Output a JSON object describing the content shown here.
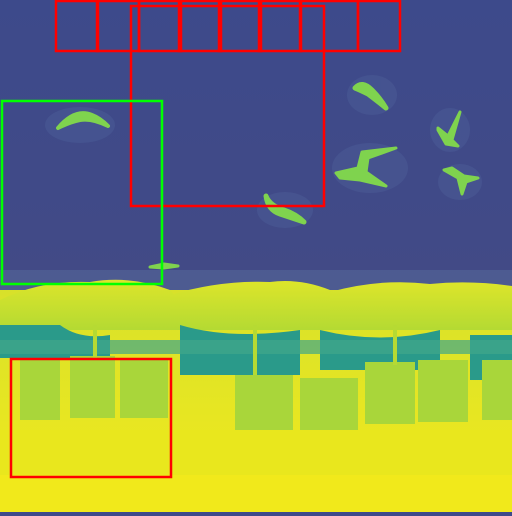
{
  "image": {
    "kind": "depth-map visualization with detection boxes",
    "colormap": "viridis",
    "palette": {
      "sky": "#3f4a8a",
      "sky_light": "#4f5e98",
      "bird": "#7fd34e",
      "umbrella": "#c9df2c",
      "umbrella_light": "#d8e32a",
      "teal": "#2a9a8a",
      "chair": "#a9d63a",
      "sand": "#e5e61f",
      "sand_light": "#f3ea1b"
    }
  },
  "boxes": [
    {
      "label": "",
      "color": "#ff0000"
    },
    {
      "label": "",
      "color": "#ff0000"
    },
    {
      "label": "",
      "color": "#ff0000"
    },
    {
      "label": "",
      "color": "#ff0000"
    },
    {
      "label": "",
      "color": "#ff0000"
    },
    {
      "label": "",
      "color": "#ff0000"
    },
    {
      "label": "",
      "color": "#ff0000"
    },
    {
      "label": "",
      "color": "#ff0000"
    },
    {
      "label": "",
      "color": "#ff0000"
    },
    {
      "label": "",
      "color": "#00ff00"
    },
    {
      "label": "",
      "color": "#ff0000"
    }
  ]
}
